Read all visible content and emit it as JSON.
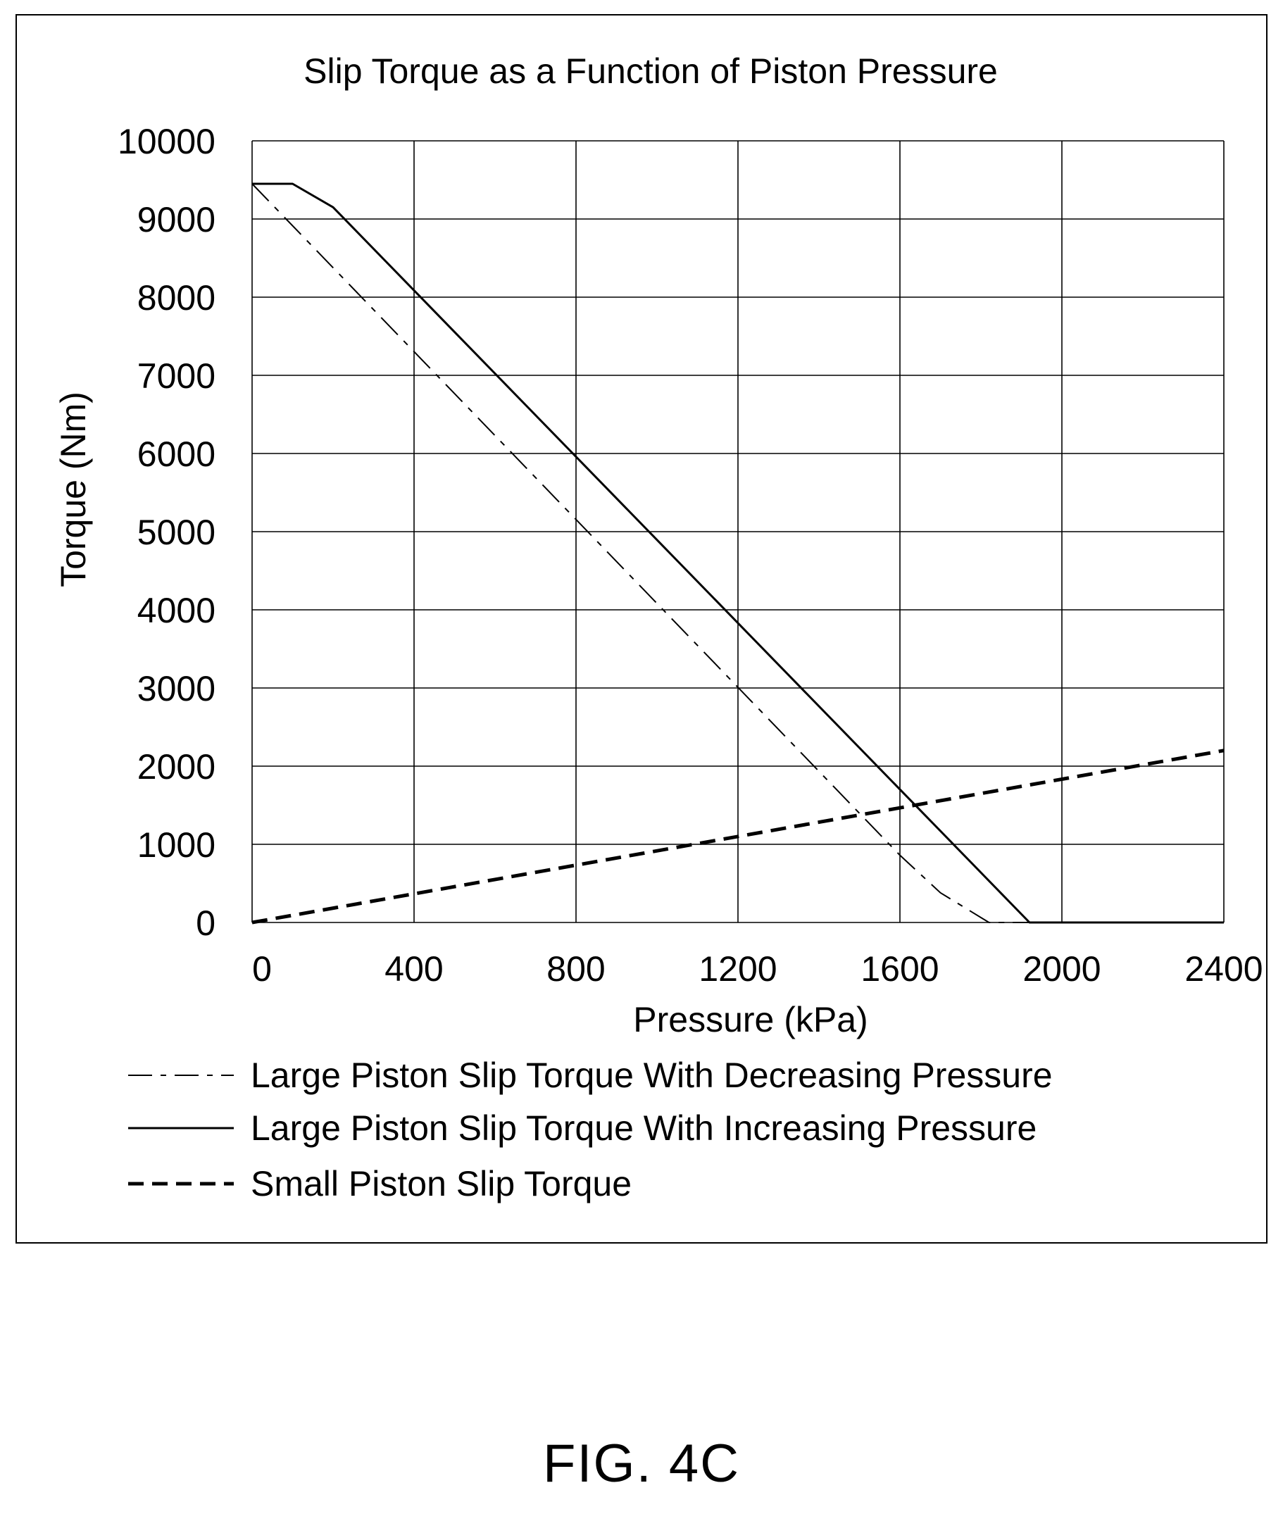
{
  "figure_label": "FIG. 4C",
  "chart_data": {
    "type": "line",
    "title": "Slip Torque as a Function of Piston Pressure",
    "xlabel": "Pressure (kPa)",
    "ylabel": "Torque (Nm)",
    "xlim": [
      0,
      2400
    ],
    "ylim": [
      0,
      10000
    ],
    "x_ticks": [
      0,
      400,
      800,
      1200,
      1600,
      2000,
      2400
    ],
    "y_ticks": [
      0,
      1000,
      2000,
      3000,
      4000,
      5000,
      6000,
      7000,
      8000,
      9000,
      10000
    ],
    "x_tick_labels": [
      "0",
      "400",
      "800",
      "1200",
      "1600",
      "2000",
      "2400"
    ],
    "y_tick_labels": [
      "0",
      "1000",
      "2000",
      "3000",
      "4000",
      "5000",
      "6000",
      "7000",
      "8000",
      "9000",
      "10000"
    ],
    "grid": true,
    "legend_position": "bottom",
    "series": [
      {
        "name": "Large Piston Slip Torque With Decreasing Pressure",
        "style": "dash-dot",
        "color": "#000000",
        "points": [
          [
            0,
            9450
          ],
          [
            1600,
            860
          ],
          [
            1700,
            380
          ],
          [
            1820,
            0
          ],
          [
            2400,
            0
          ]
        ]
      },
      {
        "name": "Large Piston Slip Torque With Increasing Pressure",
        "style": "solid",
        "color": "#000000",
        "points": [
          [
            0,
            9450
          ],
          [
            100,
            9450
          ],
          [
            200,
            9150
          ],
          [
            1920,
            0
          ],
          [
            2400,
            0
          ]
        ]
      },
      {
        "name": "Small Piston Slip Torque",
        "style": "dashed",
        "color": "#000000",
        "points": [
          [
            0,
            0
          ],
          [
            2400,
            2200
          ]
        ]
      }
    ]
  }
}
